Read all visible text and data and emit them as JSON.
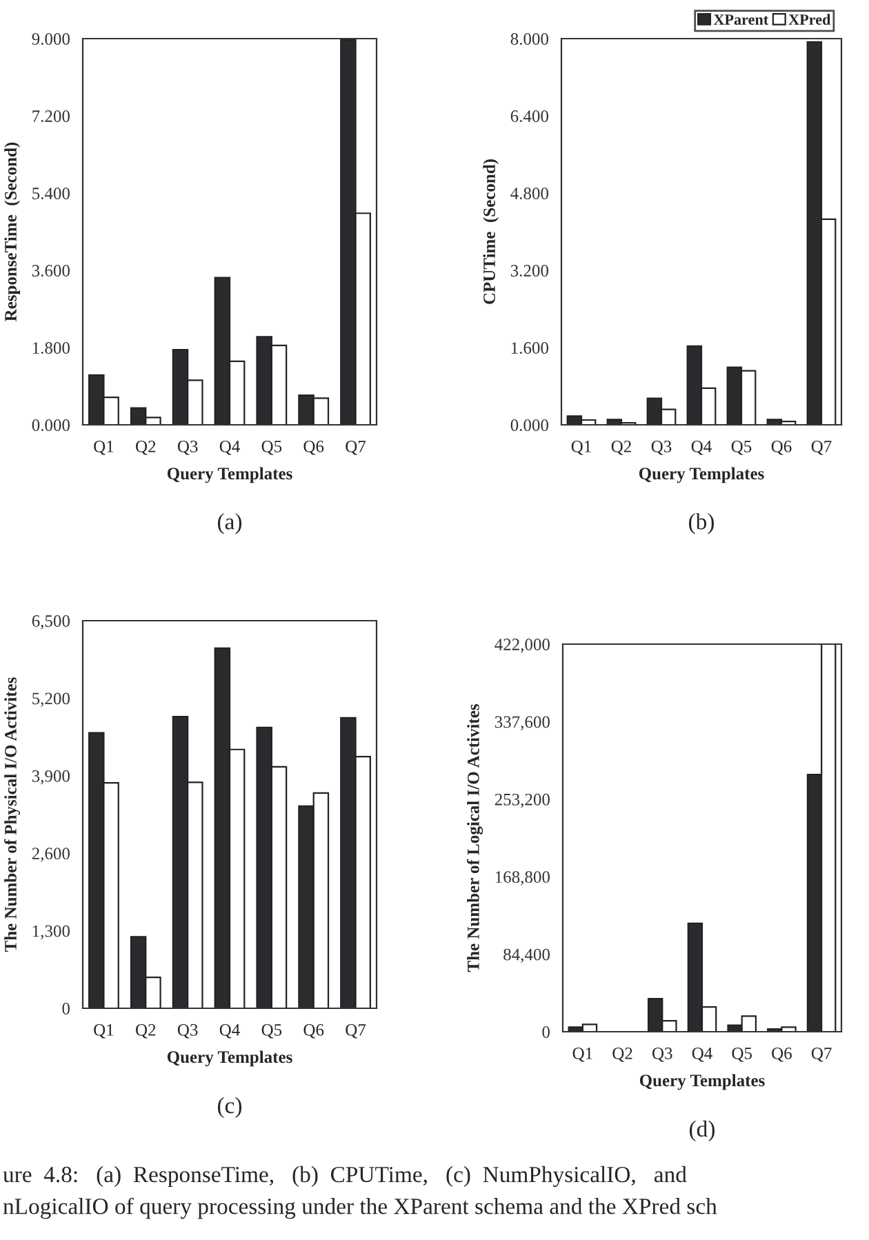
{
  "chart_data": [
    {
      "type": "bar",
      "title": "(a)",
      "xlabel": "Query Templates",
      "ylabel": "ResponseTime  (Second)",
      "categories": [
        "Q1",
        "Q2",
        "Q3",
        "Q4",
        "Q5",
        "Q6",
        "Q7"
      ],
      "series": [
        {
          "color": "#2b2b2f",
          "values": [
            1.16,
            0.39,
            1.75,
            3.43,
            2.05,
            0.69,
            8.97
          ]
        },
        {
          "color": "#ffffff",
          "values": [
            0.64,
            0.17,
            1.04,
            1.48,
            1.85,
            0.62,
            4.93
          ]
        }
      ],
      "ylim": [
        0,
        9
      ],
      "yticks": [
        {
          "value": 0,
          "label": "0.000"
        },
        {
          "value": 1.8,
          "label": "1.800"
        },
        {
          "value": 3.6,
          "label": "3.600"
        },
        {
          "value": 5.4,
          "label": "5.400"
        },
        {
          "value": 7.2,
          "label": "7.200"
        },
        {
          "value": 9,
          "label": "9.000"
        }
      ],
      "grid": false
    },
    {
      "type": "bar",
      "title": "(b)",
      "xlabel": "Query Templates",
      "ylabel": "CPUTime  (Second)",
      "categories": [
        "Q1",
        "Q2",
        "Q3",
        "Q4",
        "Q5",
        "Q6",
        "Q7"
      ],
      "series": [
        {
          "name": "XParent",
          "color": "#2b2b2f",
          "values": [
            0.18,
            0.11,
            0.55,
            1.63,
            1.19,
            0.11,
            7.93
          ]
        },
        {
          "name": "XPred",
          "color": "#ffffff",
          "values": [
            0.1,
            0.04,
            0.32,
            0.76,
            1.12,
            0.07,
            4.26
          ]
        }
      ],
      "ylim": [
        0,
        8
      ],
      "yticks": [
        {
          "value": 0,
          "label": "0.000"
        },
        {
          "value": 1.6,
          "label": "1.600"
        },
        {
          "value": 3.2,
          "label": "3.200"
        },
        {
          "value": 4.8,
          "label": "4.800"
        },
        {
          "value": 6.4,
          "label": "6.400"
        },
        {
          "value": 8,
          "label": "8.000"
        }
      ],
      "grid": false,
      "legend": "top right"
    },
    {
      "type": "bar",
      "title": "(c)",
      "xlabel": "Query Templates",
      "ylabel": "The Number of Physical I/O Activites",
      "categories": [
        "Q1",
        "Q2",
        "Q3",
        "Q4",
        "Q5",
        "Q6",
        "Q7"
      ],
      "series": [
        {
          "color": "#2b2b2f",
          "values": [
            4620,
            1200,
            4890,
            6040,
            4710,
            3390,
            4870
          ]
        },
        {
          "color": "#ffffff",
          "values": [
            3780,
            520,
            3790,
            4340,
            4050,
            3610,
            4220
          ]
        }
      ],
      "ylim": [
        0,
        6500
      ],
      "yticks": [
        0,
        {
          "value": 1300,
          "label": "1,300"
        },
        {
          "value": 2600,
          "label": "2,600"
        },
        {
          "value": 3900,
          "label": "3,900"
        },
        {
          "value": 5200,
          "label": "5,200"
        },
        {
          "value": 6500,
          "label": "6,500"
        }
      ],
      "grid": false
    },
    {
      "type": "bar",
      "title": "(d)",
      "xlabel": "Query Templates",
      "ylabel": "The Number of Logical I/O Activites",
      "categories": [
        "Q1",
        "Q2",
        "Q3",
        "Q4",
        "Q5",
        "Q6",
        "Q7"
      ],
      "series": [
        {
          "color": "#2b2b2f",
          "values": [
            5000,
            null,
            36000,
            118000,
            7000,
            3000,
            280000
          ]
        },
        {
          "color": "#ffffff",
          "values": [
            8000,
            null,
            12000,
            27000,
            17000,
            5000,
            422000
          ]
        }
      ],
      "ylim": [
        0,
        422000
      ],
      "yticks": [
        0,
        {
          "value": 84400,
          "label": "84,400"
        },
        {
          "value": 168800,
          "label": "168,800"
        },
        {
          "value": 253200,
          "label": "253,200"
        },
        {
          "value": 337600,
          "label": "337,600"
        },
        {
          "value": 422000,
          "label": "422,000"
        }
      ],
      "grid": false,
      "annotations": [
        "ure  4.8:   (a)  ResponseTime,   (b)  CPUTime,   (c)  NumPhysicalIO,   and",
        "nLogicalIO of query processing under the XParent schema and the XPred sch"
      ]
    }
  ]
}
